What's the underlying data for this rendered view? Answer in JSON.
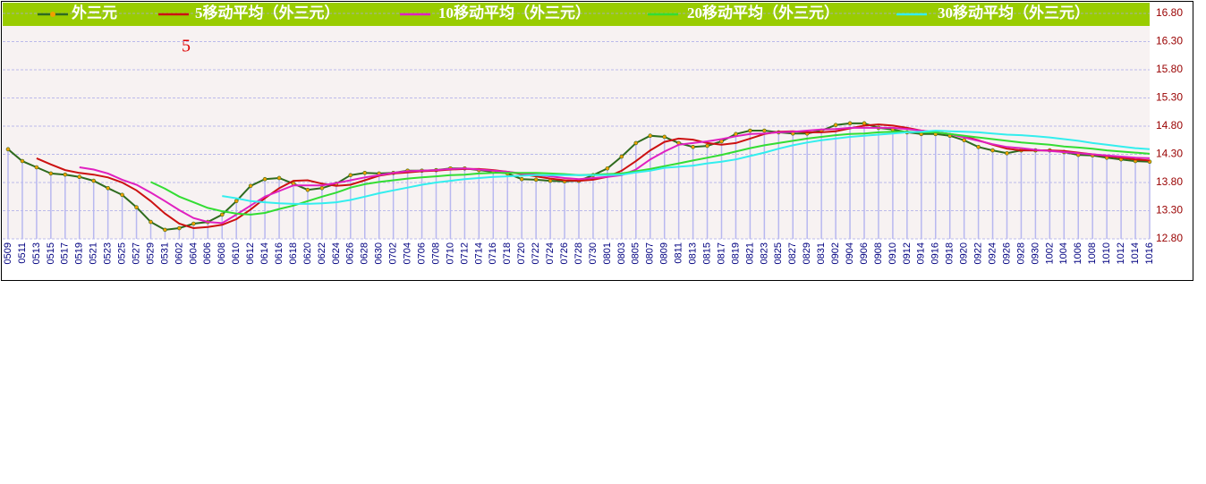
{
  "chart_data": {
    "type": "line",
    "annotation": "5",
    "categories": [
      "0509",
      "0511",
      "0513",
      "0515",
      "0517",
      "0519",
      "0521",
      "0523",
      "0525",
      "0527",
      "0529",
      "0531",
      "0602",
      "0604",
      "0606",
      "0608",
      "0610",
      "0612",
      "0614",
      "0616",
      "0618",
      "0620",
      "0622",
      "0624",
      "0626",
      "0628",
      "0630",
      "0702",
      "0704",
      "0706",
      "0708",
      "0710",
      "0712",
      "0714",
      "0716",
      "0718",
      "0720",
      "0722",
      "0724",
      "0726",
      "0728",
      "0730",
      "0801",
      "0803",
      "0805",
      "0807",
      "0809",
      "0811",
      "0813",
      "0815",
      "0817",
      "0819",
      "0821",
      "0823",
      "0825",
      "0827",
      "0829",
      "0831",
      "0902",
      "0904",
      "0906",
      "0908",
      "0910",
      "0912",
      "0914",
      "0916",
      "0918",
      "0920",
      "0922",
      "0924",
      "0926",
      "0928",
      "0930",
      "1002",
      "1004",
      "1006",
      "1008",
      "1010",
      "1012",
      "1014",
      "1016"
    ],
    "series": [
      {
        "name": "外三元",
        "color": "#2e6b1e",
        "marker_color": "#f0a000",
        "bar_color": "#b8b8f0",
        "values": [
          14.39,
          14.18,
          14.07,
          13.96,
          13.94,
          13.9,
          13.83,
          13.7,
          13.58,
          13.36,
          13.1,
          12.96,
          12.99,
          13.07,
          13.1,
          13.23,
          13.47,
          13.74,
          13.86,
          13.88,
          13.78,
          13.67,
          13.7,
          13.78,
          13.93,
          13.97,
          13.96,
          13.97,
          14.01,
          14.01,
          14.02,
          14.05,
          14.05,
          14.02,
          13.99,
          13.96,
          13.86,
          13.85,
          13.83,
          13.82,
          13.83,
          13.93,
          14.05,
          14.26,
          14.5,
          14.63,
          14.61,
          14.5,
          14.43,
          14.45,
          14.53,
          14.66,
          14.72,
          14.72,
          14.69,
          14.67,
          14.67,
          14.72,
          14.82,
          14.85,
          14.85,
          14.77,
          14.74,
          14.69,
          14.66,
          14.66,
          14.63,
          14.55,
          14.43,
          14.37,
          14.32,
          14.37,
          14.37,
          14.37,
          14.34,
          14.29,
          14.28,
          14.24,
          14.21,
          14.18,
          14.17
        ]
      },
      {
        "name": "5移动平均（外三元）",
        "color": "#cc1111",
        "values": [
          null,
          null,
          14.23,
          14.12,
          14.02,
          13.97,
          13.94,
          13.89,
          13.8,
          13.66,
          13.47,
          13.25,
          13.07,
          12.99,
          13.01,
          13.05,
          13.15,
          13.32,
          13.52,
          13.7,
          13.83,
          13.84,
          13.78,
          13.74,
          13.76,
          13.84,
          13.92,
          13.96,
          13.98,
          14.0,
          14.01,
          14.03,
          14.04,
          14.04,
          14.02,
          13.99,
          13.95,
          13.91,
          13.87,
          13.84,
          13.83,
          13.85,
          13.9,
          14.01,
          14.18,
          14.37,
          14.52,
          14.58,
          14.56,
          14.5,
          14.47,
          14.5,
          14.58,
          14.66,
          14.7,
          14.71,
          14.69,
          14.69,
          14.71,
          14.76,
          14.81,
          14.83,
          14.81,
          14.77,
          14.72,
          14.69,
          14.66,
          14.62,
          14.55,
          14.47,
          14.4,
          14.37,
          14.37,
          14.37,
          14.36,
          14.33,
          14.3,
          14.27,
          14.24,
          14.21,
          14.19
        ]
      },
      {
        "name": "10移动平均（外三元）",
        "color": "#e020c0",
        "values": [
          null,
          null,
          null,
          null,
          null,
          14.07,
          14.03,
          13.96,
          13.85,
          13.76,
          13.62,
          13.47,
          13.31,
          13.17,
          13.1,
          13.08,
          13.23,
          13.39,
          13.55,
          13.65,
          13.75,
          13.75,
          13.75,
          13.79,
          13.84,
          13.89,
          13.93,
          13.97,
          14.0,
          14.01,
          14.02,
          14.04,
          14.05,
          14.03,
          14.01,
          13.99,
          13.96,
          13.94,
          13.91,
          13.88,
          13.86,
          13.88,
          13.9,
          13.93,
          14.03,
          14.21,
          14.35,
          14.47,
          14.5,
          14.53,
          14.57,
          14.62,
          14.66,
          14.67,
          14.69,
          14.7,
          14.72,
          14.74,
          14.75,
          14.77,
          14.77,
          14.77,
          14.77,
          14.75,
          14.72,
          14.69,
          14.66,
          14.6,
          14.54,
          14.48,
          14.43,
          14.41,
          14.38,
          14.36,
          14.34,
          14.32,
          14.3,
          14.28,
          14.26,
          14.24,
          14.23
        ]
      },
      {
        "name": "20移动平均（外三元）",
        "color": "#33dd33",
        "values": [
          null,
          null,
          null,
          null,
          null,
          null,
          null,
          null,
          null,
          null,
          13.81,
          13.69,
          13.55,
          13.45,
          13.35,
          13.29,
          13.25,
          13.23,
          13.26,
          13.33,
          13.39,
          13.47,
          13.55,
          13.62,
          13.71,
          13.77,
          13.81,
          13.84,
          13.87,
          13.89,
          13.91,
          13.93,
          13.94,
          13.96,
          13.97,
          13.97,
          13.97,
          13.97,
          13.96,
          13.95,
          13.93,
          13.94,
          13.95,
          13.96,
          14.0,
          14.04,
          14.09,
          14.14,
          14.19,
          14.24,
          14.29,
          14.35,
          14.41,
          14.46,
          14.5,
          14.54,
          14.58,
          14.61,
          14.64,
          14.66,
          14.67,
          14.69,
          14.7,
          14.7,
          14.69,
          14.69,
          14.66,
          14.63,
          14.6,
          14.57,
          14.54,
          14.51,
          14.49,
          14.47,
          14.44,
          14.42,
          14.4,
          14.37,
          14.35,
          14.33,
          14.31
        ]
      },
      {
        "name": "30移动平均（外三元）",
        "color": "#33eeee",
        "values": [
          null,
          null,
          null,
          null,
          null,
          null,
          null,
          null,
          null,
          null,
          null,
          null,
          null,
          null,
          null,
          13.56,
          13.52,
          13.47,
          13.45,
          13.43,
          13.42,
          13.42,
          13.43,
          13.45,
          13.49,
          13.55,
          13.61,
          13.66,
          13.71,
          13.76,
          13.8,
          13.83,
          13.86,
          13.88,
          13.9,
          13.91,
          13.92,
          13.93,
          13.93,
          13.93,
          13.93,
          13.93,
          13.93,
          13.94,
          13.98,
          14.01,
          14.06,
          14.08,
          14.1,
          14.14,
          14.17,
          14.21,
          14.27,
          14.33,
          14.4,
          14.46,
          14.51,
          14.55,
          14.58,
          14.61,
          14.63,
          14.65,
          14.67,
          14.69,
          14.7,
          14.72,
          14.71,
          14.7,
          14.69,
          14.67,
          14.65,
          14.64,
          14.62,
          14.6,
          14.57,
          14.54,
          14.5,
          14.47,
          14.44,
          14.41,
          14.39
        ]
      }
    ],
    "ylim": [
      12.8,
      16.8
    ],
    "yticks": [
      {
        "value": 12.8,
        "label": "12.80"
      },
      {
        "value": 13.3,
        "label": "13.30"
      },
      {
        "value": 13.8,
        "label": "13.80"
      },
      {
        "value": 14.3,
        "label": "14.30"
      },
      {
        "value": 14.8,
        "label": "14.80"
      },
      {
        "value": 15.3,
        "label": "15.30"
      },
      {
        "value": 15.8,
        "label": "15.80"
      },
      {
        "value": 16.3,
        "label": "16.30"
      },
      {
        "value": 16.8,
        "label": "16.80"
      }
    ],
    "grid": true
  }
}
